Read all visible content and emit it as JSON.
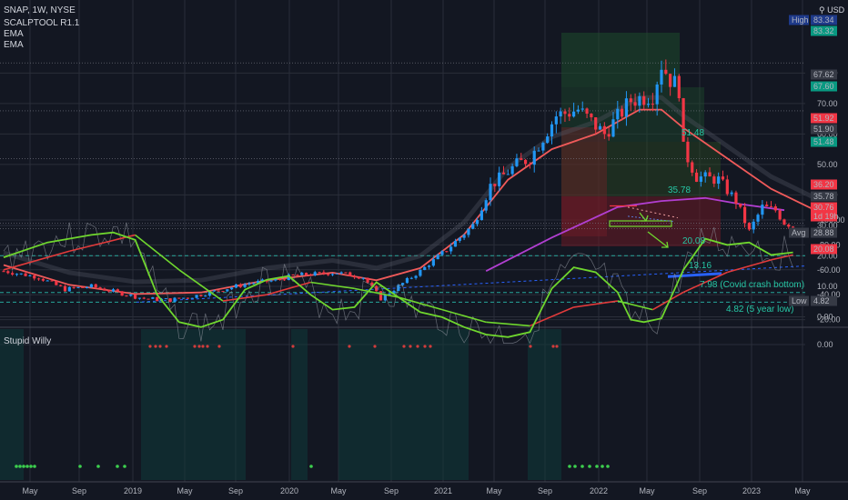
{
  "header": {
    "symbol_line": "SNAP, 1W, NYSE",
    "indicator_1": "SCALPTOOL R1.1",
    "indicator_2": "EMA",
    "indicator_3": "EMA",
    "currency": "USD",
    "settings_glyph": "⚲",
    "oscillator_name": "Stupid Willy"
  },
  "colors": {
    "background": "#131722",
    "grid": "#2a2e39",
    "candle_up": "#2196f3",
    "candle_down": "#f23645",
    "ema_fast": "#f05a5a",
    "ema_slow": "#b13fd1",
    "osc_up": "#6fd62e",
    "osc_down": "#e23b3b",
    "annotation": "#26c6a4"
  },
  "price_badges": [
    {
      "label": "High",
      "value": "83.34",
      "color": "#1e3a8a"
    },
    {
      "value": "83.32",
      "color": "#089981"
    },
    {
      "value": "67.62",
      "color": "#363a45"
    },
    {
      "value": "67.60",
      "color": "#089981"
    },
    {
      "value": "51.92",
      "color": "#f23645"
    },
    {
      "value": "51.90",
      "color": "#363a45"
    },
    {
      "value": "51.48",
      "color": "#089981"
    },
    {
      "value": "36.20",
      "color": "#f23645"
    },
    {
      "value": "35.78",
      "color": "#363a45"
    },
    {
      "value": "30.76",
      "sub": "1d 19h",
      "color": "#f23645"
    },
    {
      "label": "Avg",
      "value": "28.88",
      "color": "#363a45"
    },
    {
      "value": "20.08",
      "color": "#f23645"
    },
    {
      "label": "Low",
      "value": "4.82",
      "color": "#363a45"
    }
  ],
  "annotations": [
    {
      "text": "51.48"
    },
    {
      "text": "35.78"
    },
    {
      "text": "20.08"
    },
    {
      "text": "13.16"
    },
    {
      "text": "7.98 (Covid crash bottom)"
    },
    {
      "text": "4.82 (5 year low)"
    }
  ],
  "chart_data": {
    "type": "candlestick",
    "x_ticks": [
      "May",
      "Sep",
      "2019",
      "May",
      "Sep",
      "2020",
      "May",
      "Sep",
      "2021",
      "May",
      "Sep",
      "2022",
      "May",
      "Sep",
      "2023",
      "May"
    ],
    "price_axis_ticks": [
      "80.00",
      "70.00",
      "60.00",
      "50.00",
      "40.00",
      "30.00",
      "20.00",
      "10.00",
      "0.00"
    ],
    "osc_axis_ticks": [
      "0.00",
      "-20.00",
      "-40.00",
      "-60.00",
      "-80.00",
      "-100.00"
    ],
    "price_points": [
      [
        0,
        15
      ],
      [
        8,
        13
      ],
      [
        14,
        9
      ],
      [
        20,
        10
      ],
      [
        26,
        8
      ],
      [
        32,
        6
      ],
      [
        38,
        5.5
      ],
      [
        44,
        7
      ],
      [
        50,
        9
      ],
      [
        56,
        11
      ],
      [
        62,
        12
      ],
      [
        66,
        13.5
      ],
      [
        70,
        14
      ],
      [
        76,
        14.5
      ],
      [
        82,
        13
      ],
      [
        86,
        6
      ],
      [
        89,
        9
      ],
      [
        95,
        15
      ],
      [
        101,
        22
      ],
      [
        107,
        30
      ],
      [
        111,
        43
      ],
      [
        117,
        50
      ],
      [
        120,
        52
      ],
      [
        126,
        66
      ],
      [
        131,
        68
      ],
      [
        137,
        60
      ],
      [
        143,
        71
      ],
      [
        148,
        73
      ],
      [
        150,
        83
      ],
      [
        152,
        78
      ],
      [
        154,
        75
      ],
      [
        155,
        55
      ],
      [
        158,
        46
      ],
      [
        163,
        45
      ],
      [
        167,
        38
      ],
      [
        170,
        28
      ],
      [
        173,
        36
      ],
      [
        176,
        35
      ],
      [
        178,
        31
      ],
      [
        180,
        30
      ]
    ],
    "ema_fast": [
      [
        0,
        17
      ],
      [
        15,
        10.5
      ],
      [
        30,
        7.5
      ],
      [
        45,
        8
      ],
      [
        60,
        12
      ],
      [
        75,
        14.5
      ],
      [
        85,
        12
      ],
      [
        95,
        16
      ],
      [
        105,
        27
      ],
      [
        115,
        45
      ],
      [
        125,
        55
      ],
      [
        135,
        60
      ],
      [
        145,
        68
      ],
      [
        150,
        68
      ],
      [
        155,
        62
      ],
      [
        165,
        52
      ],
      [
        175,
        42
      ],
      [
        185,
        35
      ]
    ],
    "ema_slow": [
      [
        110,
        15
      ],
      [
        125,
        26
      ],
      [
        140,
        36
      ],
      [
        150,
        38
      ],
      [
        160,
        39
      ],
      [
        168,
        37
      ],
      [
        178,
        35
      ]
    ],
    "osc_fast": [
      [
        0,
        -70
      ],
      [
        10,
        -82
      ],
      [
        20,
        -88
      ],
      [
        25,
        -90
      ],
      [
        30,
        -84
      ],
      [
        35,
        -40
      ],
      [
        40,
        -18
      ],
      [
        45,
        -14
      ],
      [
        50,
        -20
      ],
      [
        55,
        -44
      ],
      [
        60,
        -52
      ],
      [
        65,
        -55
      ],
      [
        70,
        -40
      ],
      [
        75,
        -28
      ],
      [
        80,
        -30
      ],
      [
        85,
        -50
      ],
      [
        90,
        -38
      ],
      [
        95,
        -26
      ],
      [
        100,
        -22
      ],
      [
        105,
        -14
      ],
      [
        110,
        -8
      ],
      [
        115,
        -6
      ],
      [
        120,
        -10
      ],
      [
        125,
        -45
      ],
      [
        130,
        -62
      ],
      [
        135,
        -58
      ],
      [
        140,
        -42
      ],
      [
        143,
        -20
      ],
      [
        146,
        -18
      ],
      [
        150,
        -21
      ],
      [
        155,
        -60
      ],
      [
        160,
        -85
      ],
      [
        165,
        -80
      ],
      [
        170,
        -82
      ],
      [
        175,
        -72
      ],
      [
        180,
        -74
      ]
    ],
    "osc_slow": [
      [
        0,
        -60
      ],
      [
        15,
        -75
      ],
      [
        30,
        -88
      ],
      [
        40,
        -60
      ],
      [
        50,
        -35
      ],
      [
        60,
        -40
      ],
      [
        70,
        -50
      ],
      [
        80,
        -45
      ],
      [
        90,
        -38
      ],
      [
        100,
        -28
      ],
      [
        110,
        -18
      ],
      [
        120,
        -15
      ],
      [
        130,
        -30
      ],
      [
        140,
        -35
      ],
      [
        148,
        -28
      ],
      [
        155,
        -42
      ],
      [
        165,
        -58
      ],
      [
        175,
        -68
      ],
      [
        180,
        -72
      ]
    ]
  }
}
